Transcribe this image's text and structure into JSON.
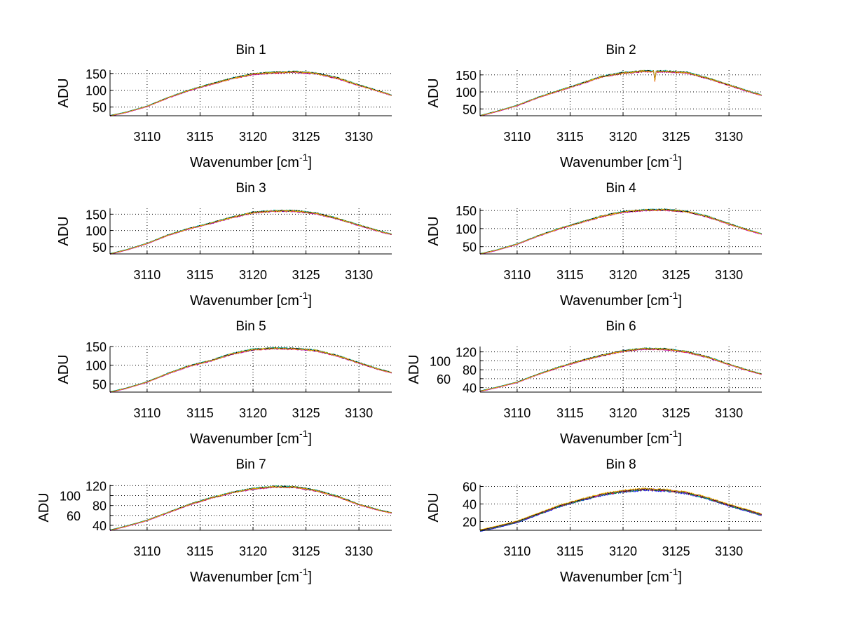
{
  "figure": {
    "xlabel": "Wavenumber [cm",
    "xlabel_sup": "-1",
    "xlabel_end": "]",
    "ylabel": "ADU"
  },
  "series_colors": [
    "#0000ff",
    "#00aa00",
    "#ff0000",
    "#00bfbf",
    "#bf00bf",
    "#000000",
    "#f0b400"
  ],
  "chart_data": [
    {
      "type": "line",
      "title": "Bin 1",
      "xlim": [
        3106.5,
        3133.1
      ],
      "ylim": [
        24,
        160
      ],
      "xticks": [
        3110,
        3115,
        3120,
        3125,
        3130
      ],
      "yticks": [
        50,
        100,
        150
      ],
      "grid": true,
      "x": [
        3106.5,
        3108,
        3110,
        3112,
        3114,
        3116,
        3118,
        3120,
        3122,
        3124,
        3126,
        3128,
        3130,
        3132,
        3133.1
      ],
      "y": [
        24,
        34,
        52,
        78,
        100,
        118,
        135,
        148,
        153,
        155,
        150,
        136,
        115,
        96,
        85
      ]
    },
    {
      "type": "line",
      "title": "Bin 2",
      "xlim": [
        3106.5,
        3133.1
      ],
      "ylim": [
        30,
        164
      ],
      "xticks": [
        3110,
        3115,
        3120,
        3125,
        3130
      ],
      "yticks": [
        50,
        100,
        150
      ],
      "grid": true,
      "x": [
        3106.5,
        3108,
        3110,
        3112,
        3114,
        3116,
        3118,
        3120,
        3122,
        3122.9,
        3123,
        3123.1,
        3124,
        3126,
        3128,
        3130,
        3132,
        3133.1
      ],
      "y": [
        30,
        42,
        60,
        84,
        104,
        124,
        145,
        156,
        161,
        160,
        132,
        160,
        160,
        157,
        140,
        120,
        100,
        90
      ]
    },
    {
      "type": "line",
      "title": "Bin 3",
      "xlim": [
        3106.5,
        3133.1
      ],
      "ylim": [
        28,
        168
      ],
      "xticks": [
        3110,
        3115,
        3120,
        3125,
        3130
      ],
      "yticks": [
        50,
        100,
        150
      ],
      "grid": true,
      "x": [
        3106.5,
        3108,
        3110,
        3112,
        3114,
        3116,
        3118,
        3120,
        3122,
        3124,
        3126,
        3128,
        3130,
        3132,
        3133.1
      ],
      "y": [
        28,
        40,
        60,
        86,
        106,
        122,
        140,
        155,
        160,
        160,
        152,
        136,
        116,
        97,
        88
      ]
    },
    {
      "type": "line",
      "title": "Bin 4",
      "xlim": [
        3106.5,
        3133.1
      ],
      "ylim": [
        30,
        156
      ],
      "xticks": [
        3110,
        3115,
        3120,
        3125,
        3130
      ],
      "yticks": [
        50,
        100,
        150
      ],
      "grid": true,
      "x": [
        3106.5,
        3108,
        3110,
        3112,
        3114,
        3116,
        3118,
        3120,
        3122,
        3124,
        3126,
        3128,
        3130,
        3132,
        3133.1
      ],
      "y": [
        30,
        40,
        57,
        80,
        100,
        117,
        134,
        146,
        151,
        152,
        147,
        133,
        113,
        94,
        85
      ]
    },
    {
      "type": "line",
      "title": "Bin 5",
      "xlim": [
        3106.5,
        3133.1
      ],
      "ylim": [
        28,
        150
      ],
      "xticks": [
        3110,
        3115,
        3120,
        3125,
        3130
      ],
      "yticks": [
        50,
        100,
        150
      ],
      "grid": true,
      "x": [
        3106.5,
        3108,
        3110,
        3112,
        3114,
        3116,
        3118,
        3120,
        3122,
        3124,
        3126,
        3128,
        3130,
        3132,
        3133.1
      ],
      "y": [
        28,
        38,
        55,
        78,
        98,
        112,
        130,
        142,
        145,
        144,
        139,
        125,
        106,
        88,
        80
      ]
    },
    {
      "type": "line",
      "title": "Bin 6",
      "xlim": [
        3106.5,
        3133.1
      ],
      "ylim": [
        30,
        132
      ],
      "xticks": [
        3110,
        3115,
        3120,
        3125,
        3130
      ],
      "yticks": [
        40,
        60,
        80,
        100,
        120
      ],
      "grid": true,
      "x": [
        3106.5,
        3108,
        3110,
        3112,
        3114,
        3116,
        3118,
        3120,
        3122,
        3124,
        3126,
        3128,
        3130,
        3132,
        3133.1
      ],
      "y": [
        32,
        40,
        52,
        70,
        86,
        100,
        112,
        122,
        127,
        126,
        120,
        108,
        92,
        77,
        70
      ]
    },
    {
      "type": "line",
      "title": "Bin 7",
      "xlim": [
        3106.5,
        3133.1
      ],
      "ylim": [
        30,
        122
      ],
      "xticks": [
        3110,
        3115,
        3120,
        3125,
        3130
      ],
      "yticks": [
        40,
        60,
        80,
        100,
        120
      ],
      "grid": true,
      "x": [
        3106.5,
        3108,
        3110,
        3112,
        3114,
        3116,
        3118,
        3120,
        3122,
        3124,
        3126,
        3128,
        3130,
        3132,
        3133.1
      ],
      "y": [
        30,
        38,
        50,
        66,
        82,
        95,
        106,
        114,
        118,
        117,
        110,
        98,
        82,
        70,
        65
      ]
    },
    {
      "type": "line",
      "title": "Bin 8",
      "xlim": [
        3106.5,
        3133.1
      ],
      "ylim": [
        10,
        62
      ],
      "xticks": [
        3110,
        3115,
        3120,
        3125,
        3130
      ],
      "yticks": [
        20,
        40,
        60
      ],
      "grid": true,
      "x": [
        3106.5,
        3108,
        3110,
        3112,
        3114,
        3116,
        3118,
        3120,
        3122,
        3124,
        3126,
        3128,
        3130,
        3132,
        3133.1
      ],
      "y": [
        10,
        14,
        20,
        29,
        38,
        45,
        51,
        55,
        57,
        56,
        53,
        47,
        39,
        32,
        28
      ]
    }
  ]
}
